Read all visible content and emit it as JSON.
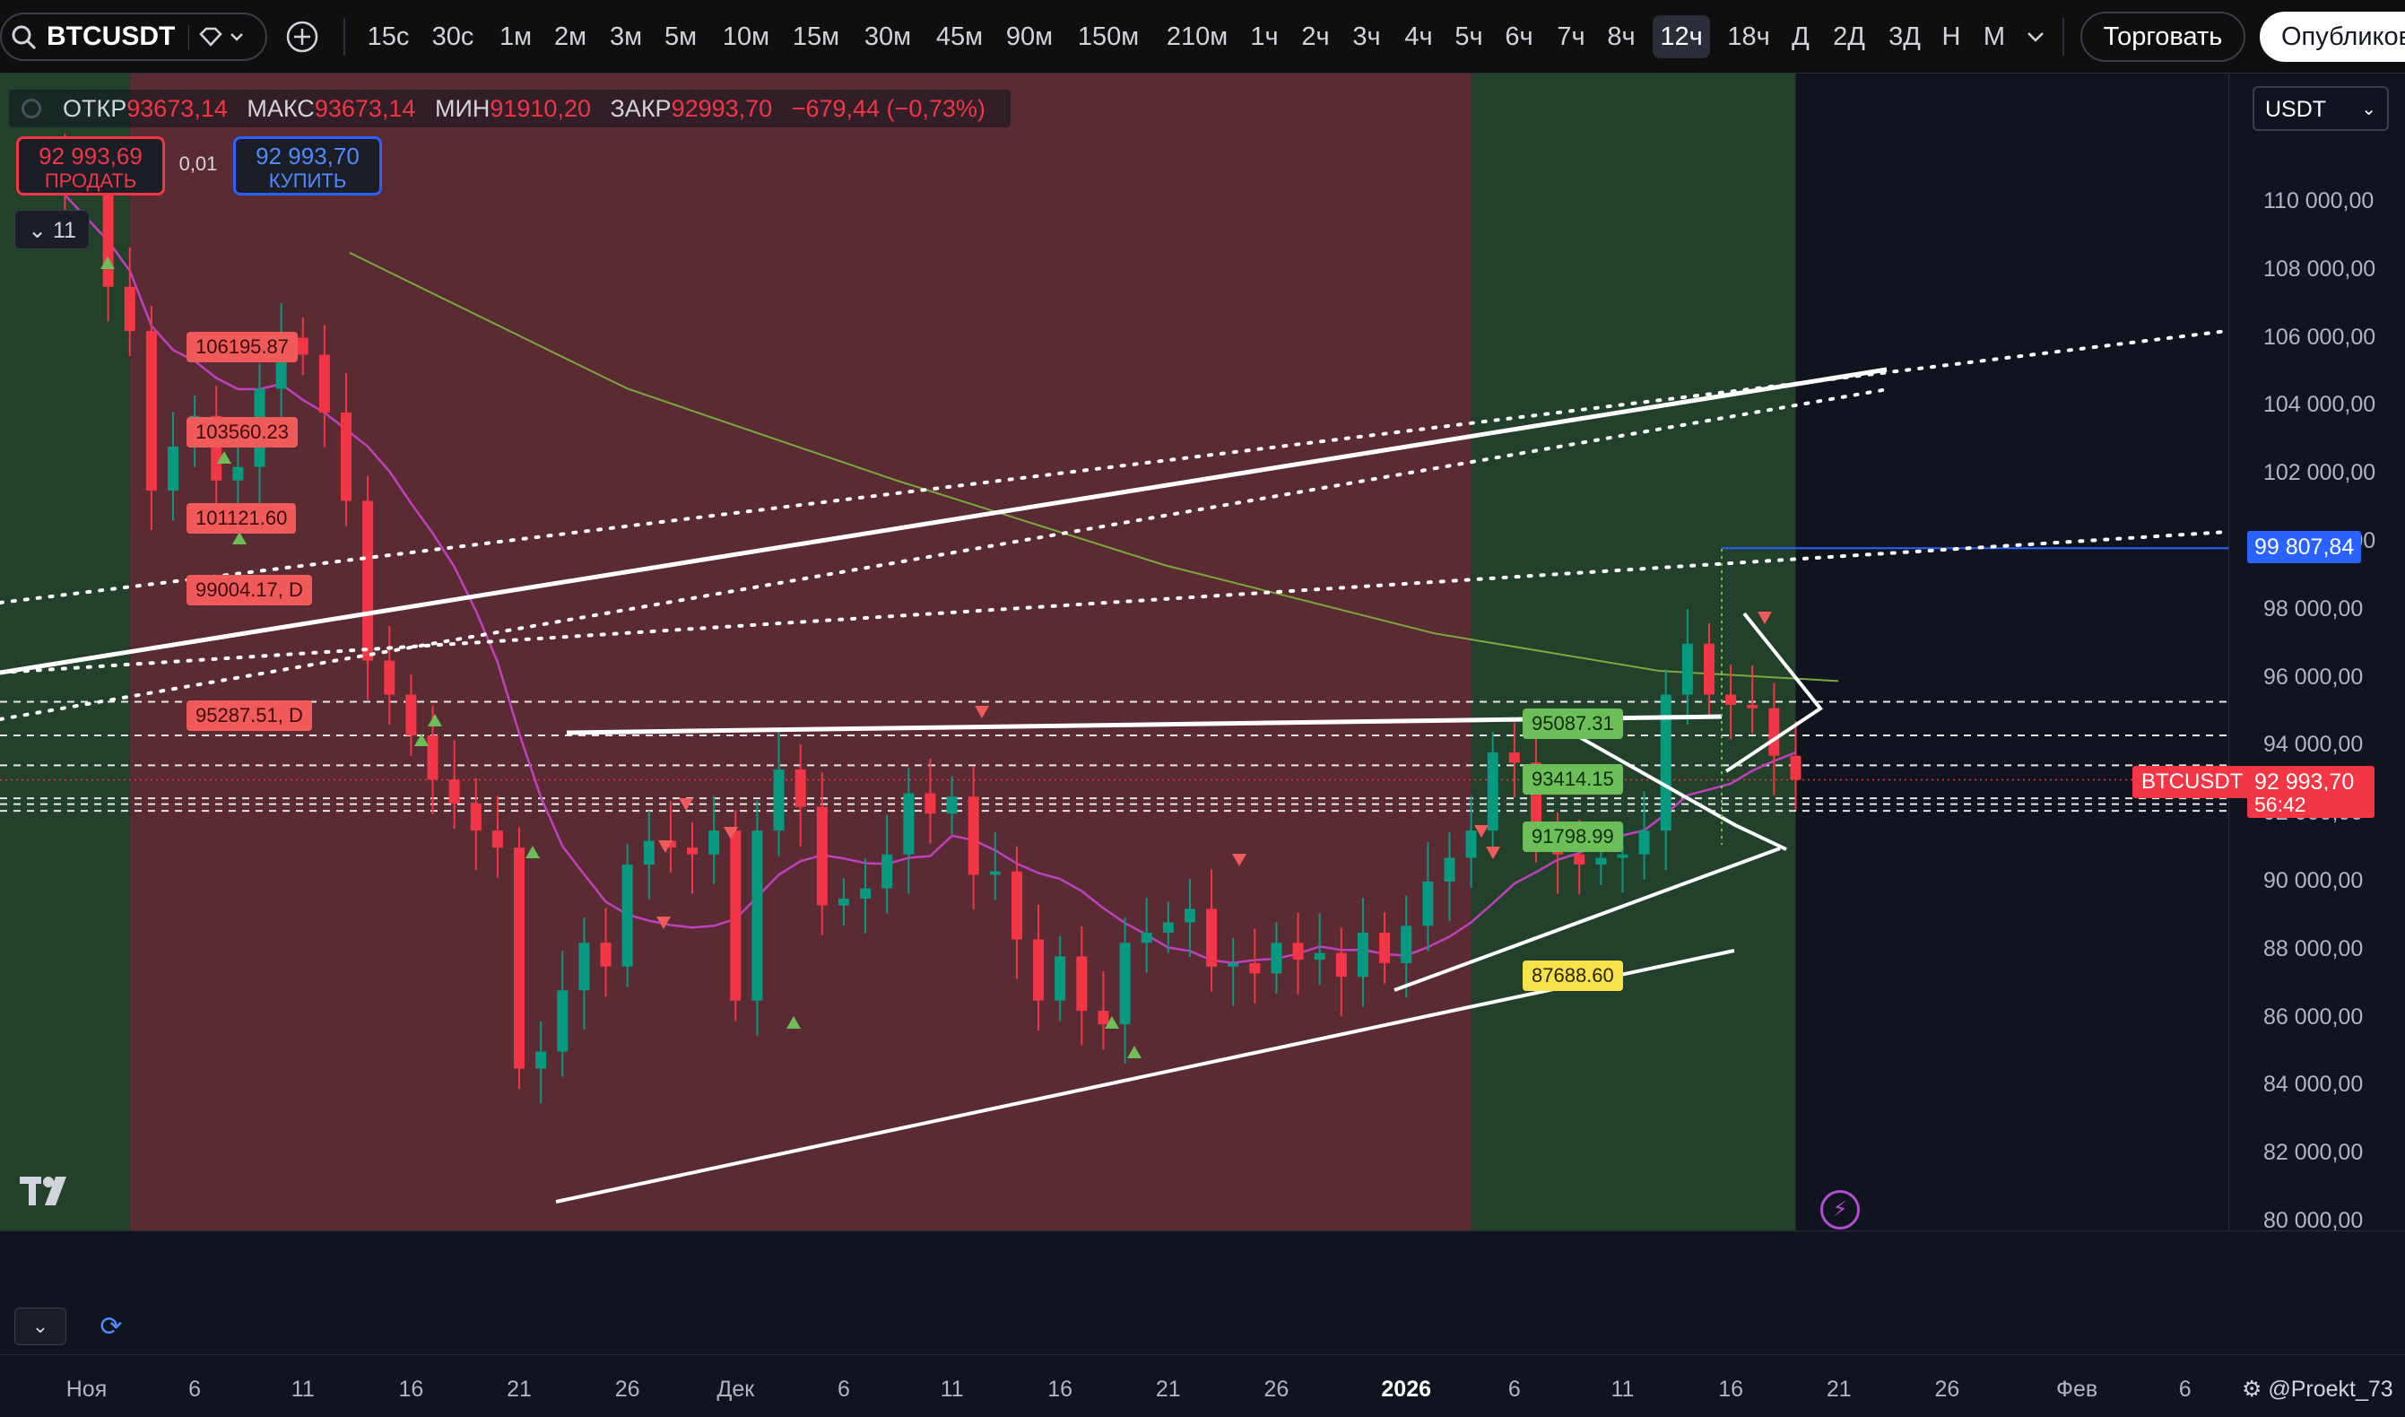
{
  "toolbar": {
    "symbol": "BTCUSDT",
    "intervals": [
      "15с",
      "30с",
      "1м",
      "2м",
      "3м",
      "5м",
      "10м",
      "15м",
      "30м",
      "45м",
      "90м",
      "150м",
      "210м",
      "1ч",
      "2ч",
      "3ч",
      "4ч",
      "5ч",
      "6ч",
      "7ч",
      "8ч",
      "12ч",
      "18ч",
      "Д",
      "2Д",
      "3Д",
      "Н",
      "М"
    ],
    "active_interval": "12ч",
    "trade_label": "Торговать",
    "publish_label": "Опубликовать"
  },
  "legend": {
    "open_label": "ОТКР",
    "open_value": "93673,14",
    "high_label": "МАКС",
    "high_value": "93673,14",
    "low_label": "МИН",
    "low_value": "91910,20",
    "close_label": "ЗАКР",
    "close_value": "92993,70",
    "change": "−679,44 (−0,73%)"
  },
  "order_panel": {
    "sell_price": "92 993,69",
    "sell_label": "ПРОДАТЬ",
    "spread": "0,01",
    "buy_price": "92 993,70",
    "buy_label": "КУПИТЬ",
    "indicators_count": "11"
  },
  "price_scale": {
    "currency": "USDT",
    "alert_price": "99 807,84",
    "last_price": "92 993,70",
    "countdown": "56:42",
    "symbol_tag": "BTCUSDT"
  },
  "colors": {
    "up": "#089981",
    "down": "#f23645",
    "bg_red": "#5a2b32",
    "bg_green": "#23402b",
    "bg_dark": "#10141f",
    "ma_fast": "#c040c0",
    "ma_slow": "#7aaa3a"
  },
  "chart_data": {
    "type": "candlestick",
    "symbol": "BTCUSDT",
    "timeframe": "12ч",
    "ylim": [
      80000,
      112000
    ],
    "y_ticks": [
      "80 000,00",
      "82 000,00",
      "84 000,00",
      "86 000,00",
      "88 000,00",
      "90 000,00",
      "92 000,00",
      "94 000,00",
      "96 000,00",
      "98 000,00",
      "100 000,00",
      "102 000,00",
      "104 000,00",
      "106 000,00",
      "108 000,00",
      "110 000,00"
    ],
    "y_tick_values": [
      80000,
      82000,
      84000,
      86000,
      88000,
      90000,
      92000,
      94000,
      96000,
      98000,
      100000,
      102000,
      104000,
      106000,
      108000,
      110000
    ],
    "x_ticks": [
      "Ноя",
      "6",
      "11",
      "16",
      "21",
      "26",
      "Дек",
      "6",
      "11",
      "16",
      "21",
      "26",
      "2026",
      "6",
      "11",
      "16",
      "21",
      "26",
      "Фев",
      "6"
    ],
    "x_tick_dates": [
      "2025-11-01",
      "2025-11-06",
      "2025-11-11",
      "2025-11-16",
      "2025-11-21",
      "2025-11-26",
      "2025-12-01",
      "2025-12-06",
      "2025-12-11",
      "2025-12-16",
      "2025-12-21",
      "2025-12-26",
      "2026-01-01",
      "2026-01-06",
      "2026-01-11",
      "2026-01-16",
      "2026-01-21",
      "2026-01-26",
      "2026-02-01",
      "2026-02-06"
    ],
    "x_range": [
      "2025-10-28",
      "2026-02-08"
    ],
    "background_zones": [
      {
        "from": "2025-10-28",
        "to": "2025-11-03",
        "color": "green"
      },
      {
        "from": "2025-11-03",
        "to": "2026-01-04",
        "color": "red"
      },
      {
        "from": "2026-01-04",
        "to": "2026-01-19",
        "color": "green"
      }
    ],
    "closes": [
      {
        "date": "2025-10-31",
        "close": 110200
      },
      {
        "date": "2025-11-02",
        "close": 107500
      },
      {
        "date": "2025-11-03",
        "close": 106200
      },
      {
        "date": "2025-11-04",
        "close": 101500
      },
      {
        "date": "2025-11-05",
        "close": 102800
      },
      {
        "date": "2025-11-06",
        "close": 103700
      },
      {
        "date": "2025-11-07",
        "close": 101800
      },
      {
        "date": "2025-11-08",
        "close": 102200
      },
      {
        "date": "2025-11-09",
        "close": 104500
      },
      {
        "date": "2025-11-10",
        "close": 106000
      },
      {
        "date": "2025-11-11",
        "close": 105500
      },
      {
        "date": "2025-11-12",
        "close": 103800
      },
      {
        "date": "2025-11-13",
        "close": 101200
      },
      {
        "date": "2025-11-14",
        "close": 96500
      },
      {
        "date": "2025-11-15",
        "close": 95500
      },
      {
        "date": "2025-11-16",
        "close": 94300
      },
      {
        "date": "2025-11-17",
        "close": 93000
      },
      {
        "date": "2025-11-18",
        "close": 92300
      },
      {
        "date": "2025-11-19",
        "close": 91500
      },
      {
        "date": "2025-11-20",
        "close": 91000
      },
      {
        "date": "2025-11-21",
        "close": 84500
      },
      {
        "date": "2025-11-22",
        "close": 85000
      },
      {
        "date": "2025-11-23",
        "close": 86800
      },
      {
        "date": "2025-11-24",
        "close": 88200
      },
      {
        "date": "2025-11-25",
        "close": 87500
      },
      {
        "date": "2025-11-26",
        "close": 90500
      },
      {
        "date": "2025-11-27",
        "close": 91200
      },
      {
        "date": "2025-11-28",
        "close": 91000
      },
      {
        "date": "2025-11-29",
        "close": 90800
      },
      {
        "date": "2025-11-30",
        "close": 91500
      },
      {
        "date": "2025-12-01",
        "close": 86500
      },
      {
        "date": "2025-12-02",
        "close": 91500
      },
      {
        "date": "2025-12-03",
        "close": 93300
      },
      {
        "date": "2025-12-04",
        "close": 92200
      },
      {
        "date": "2025-12-05",
        "close": 89300
      },
      {
        "date": "2025-12-06",
        "close": 89500
      },
      {
        "date": "2025-12-07",
        "close": 89800
      },
      {
        "date": "2025-12-08",
        "close": 90800
      },
      {
        "date": "2025-12-09",
        "close": 92600
      },
      {
        "date": "2025-12-10",
        "close": 92000
      },
      {
        "date": "2025-12-11",
        "close": 92500
      },
      {
        "date": "2025-12-12",
        "close": 90200
      },
      {
        "date": "2025-12-13",
        "close": 90300
      },
      {
        "date": "2025-12-14",
        "close": 88300
      },
      {
        "date": "2025-12-15",
        "close": 86500
      },
      {
        "date": "2025-12-16",
        "close": 87800
      },
      {
        "date": "2025-12-17",
        "close": 86200
      },
      {
        "date": "2025-12-18",
        "close": 85800
      },
      {
        "date": "2025-12-19",
        "close": 88200
      },
      {
        "date": "2025-12-20",
        "close": 88500
      },
      {
        "date": "2025-12-21",
        "close": 88800
      },
      {
        "date": "2025-12-22",
        "close": 89200
      },
      {
        "date": "2025-12-23",
        "close": 87500
      },
      {
        "date": "2025-12-24",
        "close": 87600
      },
      {
        "date": "2025-12-25",
        "close": 87300
      },
      {
        "date": "2025-12-26",
        "close": 88200
      },
      {
        "date": "2025-12-27",
        "close": 87700
      },
      {
        "date": "2025-12-28",
        "close": 87900
      },
      {
        "date": "2025-12-29",
        "close": 87200
      },
      {
        "date": "2025-12-30",
        "close": 88500
      },
      {
        "date": "2025-12-31",
        "close": 87600
      },
      {
        "date": "2026-01-01",
        "close": 88700
      },
      {
        "date": "2026-01-02",
        "close": 90000
      },
      {
        "date": "2026-01-03",
        "close": 90700
      },
      {
        "date": "2026-01-04",
        "close": 91500
      },
      {
        "date": "2026-01-05",
        "close": 93800
      },
      {
        "date": "2026-01-06",
        "close": 93500
      },
      {
        "date": "2026-01-07",
        "close": 91300
      },
      {
        "date": "2026-01-08",
        "close": 90800
      },
      {
        "date": "2026-01-09",
        "close": 90500
      },
      {
        "date": "2026-01-10",
        "close": 90700
      },
      {
        "date": "2026-01-11",
        "close": 90800
      },
      {
        "date": "2026-01-12",
        "close": 91500
      },
      {
        "date": "2026-01-13",
        "close": 95500
      },
      {
        "date": "2026-01-14",
        "close": 97000
      },
      {
        "date": "2026-01-15",
        "close": 95500
      },
      {
        "date": "2026-01-16",
        "close": 95200
      },
      {
        "date": "2026-01-17",
        "close": 95100
      },
      {
        "date": "2026-01-18",
        "close": 93700
      },
      {
        "date": "2026-01-19",
        "close": 92994
      }
    ],
    "level_labels": [
      {
        "price": "106195.87",
        "color": "red"
      },
      {
        "price": "103560.23",
        "color": "red"
      },
      {
        "price": "101121.60",
        "color": "red"
      },
      {
        "price": "99004.17, D",
        "color": "red"
      },
      {
        "price": "95287.51, D",
        "color": "red"
      },
      {
        "price": "95087.31",
        "color": "green"
      },
      {
        "price": "93414.15",
        "color": "green"
      },
      {
        "price": "91798.99",
        "color": "green"
      },
      {
        "price": "87688.60",
        "color": "yellow"
      }
    ],
    "grid": false,
    "legend": "top-left"
  },
  "time_axis": {
    "watermark": "@Proekt_73"
  }
}
